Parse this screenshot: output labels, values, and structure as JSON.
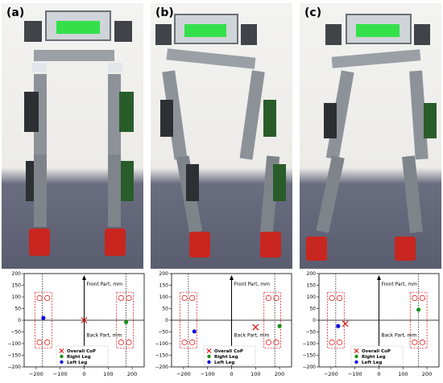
{
  "figure": {
    "panels": [
      {
        "label": "(a)"
      },
      {
        "label": "(b)"
      },
      {
        "label": "(c)"
      }
    ],
    "plot_text": {
      "front": "Front Part, mm",
      "back": "Back Part, mm"
    }
  },
  "chart_data": [
    {
      "type": "scatter",
      "xlim": [
        -250,
        250
      ],
      "ylim": [
        -200,
        200
      ],
      "xticks": [
        -200,
        -100,
        0,
        100,
        200
      ],
      "yticks": [
        -200,
        -150,
        -100,
        -50,
        0,
        50,
        100,
        150,
        200
      ],
      "tick_labels_x": [
        "−200",
        "−100",
        "0",
        "100",
        "200"
      ],
      "tick_labels_y": [
        "−200",
        "−150",
        "−100",
        "−50",
        "0",
        "50",
        "100",
        "150",
        "200"
      ],
      "series": [
        {
          "name": "Overall CoP",
          "marker": "x",
          "color": "#e00000",
          "points": [
            [
              0,
              0
            ]
          ]
        },
        {
          "name": "Right Leg",
          "marker": "o",
          "color": "#1a8f1a",
          "points": [
            [
              175,
              -8
            ]
          ]
        },
        {
          "name": "Left Leg",
          "marker": "o",
          "color": "#1010e0",
          "points": [
            [
              -170,
              10
            ]
          ]
        }
      ],
      "foot_boxes_x": [
        [
          -205,
          -135
        ],
        [
          135,
          205
        ]
      ],
      "foot_box_y": [
        -120,
        120
      ],
      "dotted_lines_x": [
        -175,
        175
      ],
      "legend": "bottom-center"
    },
    {
      "type": "scatter",
      "xlim": [
        -250,
        250
      ],
      "ylim": [
        -200,
        200
      ],
      "xticks": [
        -200,
        -100,
        0,
        100,
        200
      ],
      "yticks": [
        -200,
        -150,
        -100,
        -50,
        0,
        50,
        100,
        150,
        200
      ],
      "tick_labels_x": [
        "−200",
        "−100",
        "0",
        "100",
        "200"
      ],
      "tick_labels_y": [
        "−200",
        "−150",
        "−100",
        "−50",
        "0",
        "50",
        "100",
        "150",
        "200"
      ],
      "series": [
        {
          "name": "Overall CoP",
          "marker": "x",
          "color": "#e00000",
          "points": [
            [
              100,
              -30
            ]
          ]
        },
        {
          "name": "Right Leg",
          "marker": "o",
          "color": "#1a8f1a",
          "points": [
            [
              200,
              -25
            ]
          ]
        },
        {
          "name": "Left Leg",
          "marker": "o",
          "color": "#1010e0",
          "points": [
            [
              -155,
              -48
            ]
          ]
        }
      ],
      "foot_boxes_x": [
        [
          -215,
          -145
        ],
        [
          135,
          205
        ]
      ],
      "foot_box_y": [
        -120,
        120
      ],
      "dotted_lines_x": [
        -180,
        180
      ],
      "legend": "bottom-center"
    },
    {
      "type": "scatter",
      "xlim": [
        -250,
        250
      ],
      "ylim": [
        -200,
        200
      ],
      "xticks": [
        -200,
        -100,
        0,
        100,
        200
      ],
      "yticks": [
        -200,
        -150,
        -100,
        -50,
        0,
        50,
        100,
        150,
        200
      ],
      "tick_labels_x": [
        "−200",
        "−100",
        "0",
        "100",
        "200"
      ],
      "tick_labels_y": [
        "−200",
        "−150",
        "−100",
        "−50",
        "0",
        "50",
        "100",
        "150",
        "200"
      ],
      "series": [
        {
          "name": "Overall CoP",
          "marker": "x",
          "color": "#e00000",
          "points": [
            [
              -140,
              -15
            ]
          ]
        },
        {
          "name": "Right Leg",
          "marker": "o",
          "color": "#1a8f1a",
          "points": [
            [
              165,
              45
            ]
          ]
        },
        {
          "name": "Left Leg",
          "marker": "o",
          "color": "#1010e0",
          "points": [
            [
              -170,
              -25
            ]
          ]
        }
      ],
      "foot_boxes_x": [
        [
          -215,
          -145
        ],
        [
          130,
          200
        ]
      ],
      "foot_box_y": [
        -120,
        120
      ],
      "dotted_lines_x": [
        -180,
        165
      ],
      "legend": "bottom-center"
    }
  ]
}
